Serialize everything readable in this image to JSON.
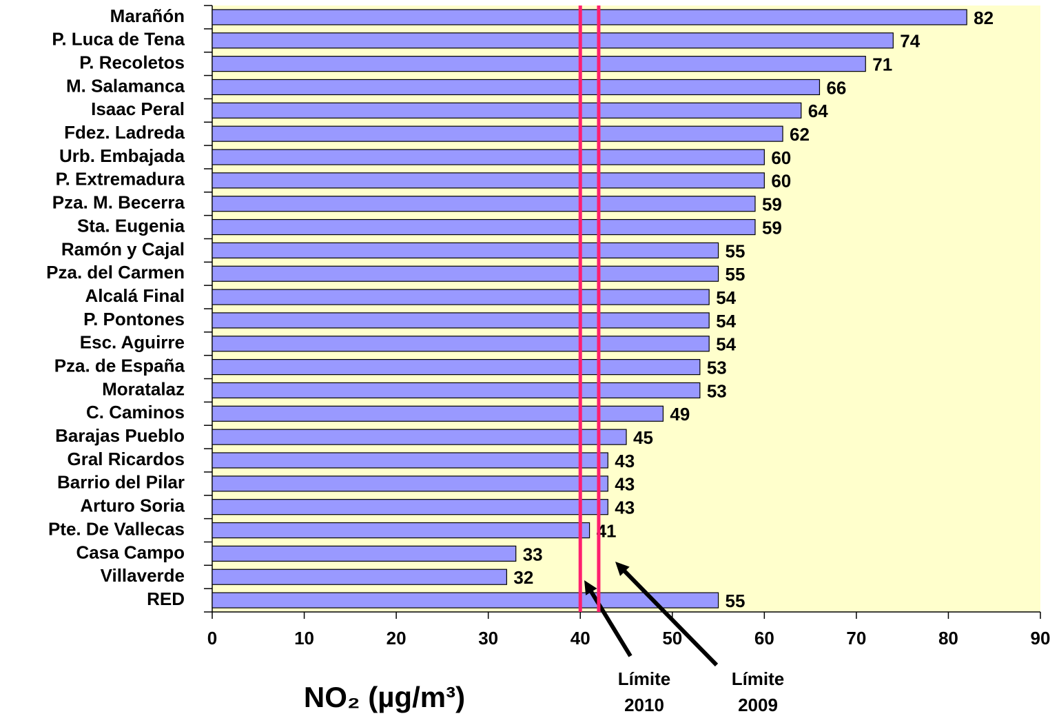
{
  "chart_data": {
    "type": "barh",
    "categories": [
      "Marañón",
      "P. Luca de Tena",
      "P. Recoletos",
      "M. Salamanca",
      "Isaac Peral",
      "Fdez. Ladreda",
      "Urb. Embajada",
      "P. Extremadura",
      "Pza. M. Becerra",
      "Sta. Eugenia",
      "Ramón y Cajal",
      "Pza. del Carmen",
      "Alcalá Final",
      "P. Pontones",
      "Esc. Aguirre",
      "Pza. de España",
      "Moratalaz",
      "C. Caminos",
      "Barajas Pueblo",
      "Gral Ricardos",
      "Barrio del Pilar",
      "Arturo Soria",
      "Pte. De Vallecas",
      "Casa Campo",
      "Villaverde",
      "RED"
    ],
    "values": [
      82,
      74,
      71,
      66,
      64,
      62,
      60,
      60,
      59,
      59,
      55,
      55,
      54,
      54,
      54,
      53,
      53,
      49,
      45,
      43,
      43,
      43,
      41,
      33,
      32,
      55
    ],
    "color": "#9999ff",
    "background": "#ffffcc",
    "xlim": [
      0,
      90
    ],
    "xticks": [
      0,
      10,
      20,
      30,
      40,
      50,
      60,
      70,
      80,
      90
    ],
    "xlabel": "NO₂ (µg/m³)",
    "reference_lines": [
      {
        "value": 40,
        "label": "Límite 2010",
        "color": "#ff1f6e"
      },
      {
        "value": 42,
        "label": "Límite 2009",
        "color": "#ff1f6e"
      }
    ]
  }
}
